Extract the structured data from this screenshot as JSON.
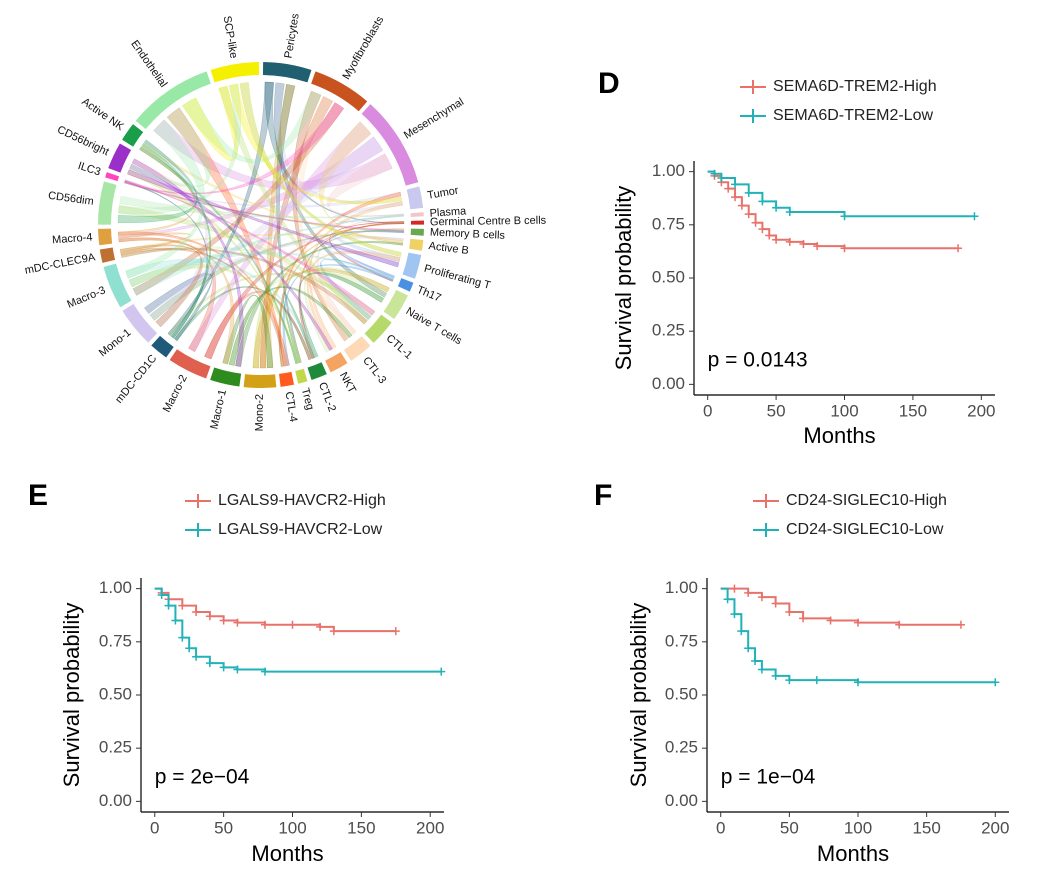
{
  "chart_data": [
    {
      "type": "chord",
      "categories": [
        "Pericytes",
        "Myofibroblasts",
        "Mesenchymal",
        "Tumor",
        "Plasma",
        "Germinal Centre B cells",
        "Memory B cells",
        "Active B",
        "Proliferating T",
        "Th17",
        "Naive T cells",
        "CTL-1",
        "CTL-3",
        "NKT",
        "CTL-2",
        "Treg",
        "CTL-4",
        "Mono-2",
        "Macro-1",
        "Macro-2",
        "mDC-CD1C",
        "Mono-1",
        "Macro-3",
        "mDC-CLEC9A",
        "Macro-4",
        "CD56dim",
        "ILC3",
        "CD56bright",
        "Active NK",
        "Endothelial",
        "SCP-like"
      ],
      "values": [
        18,
        22,
        34,
        8,
        1.5,
        1.5,
        2.5,
        4,
        9,
        3.5,
        10,
        10,
        9,
        7,
        6,
        3.5,
        5,
        12,
        11,
        15,
        7,
        15,
        16,
        5,
        6,
        16,
        2,
        10,
        7,
        32,
        18
      ],
      "colors": [
        "#1f5f6f",
        "#c8531e",
        "#d98be0",
        "#c9c9f0",
        "#f2c6c6",
        "#d62728",
        "#6aa84f",
        "#f0d264",
        "#9fc5f0",
        "#4a90e2",
        "#c9e59a",
        "#b6d96b",
        "#fdd9b5",
        "#f4a460",
        "#1f8a3a",
        "#c0d84a",
        "#ff5a1f",
        "#d4a017",
        "#2e8b1e",
        "#e06050",
        "#1f5a7a",
        "#d2c6f0",
        "#8fe0d0",
        "#c07030",
        "#e0a040",
        "#a8e6a8",
        "#ff44c0",
        "#9b30c9",
        "#1a9e4a",
        "#98e8a8",
        "#f5f000"
      ]
    },
    {
      "type": "km",
      "panel": "D",
      "annotation": "p = 0.0143",
      "xlabel": "Months",
      "ylabel": "Survival probability",
      "xlim": [
        -10,
        210
      ],
      "xticks": [
        0,
        50,
        100,
        150,
        200
      ],
      "ylim": [
        -0.05,
        1.05
      ],
      "yticks": [
        {
          "value": 0,
          "label": "0.00"
        },
        {
          "value": 0.25,
          "label": "0.25"
        },
        {
          "value": 0.5,
          "label": "0.50"
        },
        {
          "value": 0.75,
          "label": "0.75"
        },
        {
          "value": 1,
          "label": "1.00"
        }
      ],
      "series": [
        {
          "name": "SEMA6D-TREM2-High",
          "color": "#e8726a",
          "x": [
            0,
            5,
            10,
            15,
            20,
            25,
            30,
            35,
            40,
            45,
            50,
            60,
            70,
            80,
            100,
            183
          ],
          "values": [
            1,
            0.98,
            0.95,
            0.92,
            0.88,
            0.84,
            0.8,
            0.76,
            0.73,
            0.7,
            0.68,
            0.67,
            0.66,
            0.65,
            0.64,
            0.64
          ]
        },
        {
          "name": "SEMA6D-TREM2-Low",
          "color": "#20b2b8",
          "x": [
            0,
            5,
            10,
            20,
            30,
            40,
            50,
            60,
            100,
            195
          ],
          "values": [
            1,
            0.99,
            0.97,
            0.94,
            0.9,
            0.86,
            0.83,
            0.81,
            0.79,
            0.79
          ]
        }
      ]
    },
    {
      "type": "km",
      "panel": "E",
      "annotation": "p = 2e−04",
      "xlabel": "Months",
      "ylabel": "Survival probability",
      "xlim": [
        -10,
        210
      ],
      "xticks": [
        0,
        50,
        100,
        150,
        200
      ],
      "ylim": [
        -0.05,
        1.05
      ],
      "yticks": [
        {
          "value": 0,
          "label": "0.00"
        },
        {
          "value": 0.25,
          "label": "0.25"
        },
        {
          "value": 0.5,
          "label": "0.50"
        },
        {
          "value": 0.75,
          "label": "0.75"
        },
        {
          "value": 1,
          "label": "1.00"
        }
      ],
      "series": [
        {
          "name": "LGALS9-HAVCR2-High",
          "color": "#e8726a",
          "x": [
            0,
            5,
            10,
            20,
            30,
            40,
            50,
            60,
            80,
            100,
            120,
            130,
            175
          ],
          "values": [
            1,
            0.98,
            0.95,
            0.92,
            0.89,
            0.87,
            0.85,
            0.84,
            0.83,
            0.83,
            0.82,
            0.8,
            0.8
          ]
        },
        {
          "name": "LGALS9-HAVCR2-Low",
          "color": "#20b2b8",
          "x": [
            0,
            5,
            10,
            15,
            20,
            25,
            30,
            40,
            50,
            60,
            80,
            208
          ],
          "values": [
            1,
            0.97,
            0.92,
            0.85,
            0.77,
            0.72,
            0.68,
            0.65,
            0.63,
            0.62,
            0.61,
            0.61
          ]
        }
      ]
    },
    {
      "type": "km",
      "panel": "F",
      "annotation": "p = 1e−04",
      "xlabel": "Months",
      "ylabel": "Survival probability",
      "xlim": [
        -10,
        210
      ],
      "xticks": [
        0,
        50,
        100,
        150,
        200
      ],
      "ylim": [
        -0.05,
        1.05
      ],
      "yticks": [
        {
          "value": 0,
          "label": "0.00"
        },
        {
          "value": 0.25,
          "label": "0.25"
        },
        {
          "value": 0.5,
          "label": "0.50"
        },
        {
          "value": 0.75,
          "label": "0.75"
        },
        {
          "value": 1,
          "label": "1.00"
        }
      ],
      "series": [
        {
          "name": "CD24-SIGLEC10-High",
          "color": "#e8726a",
          "x": [
            0,
            10,
            20,
            30,
            40,
            50,
            60,
            80,
            100,
            130,
            175
          ],
          "values": [
            1,
            1,
            0.98,
            0.96,
            0.93,
            0.89,
            0.86,
            0.85,
            0.84,
            0.83,
            0.83
          ]
        },
        {
          "name": "CD24-SIGLEC10-Low",
          "color": "#20b2b8",
          "x": [
            0,
            5,
            10,
            15,
            20,
            25,
            30,
            40,
            50,
            70,
            100,
            200
          ],
          "values": [
            1,
            0.95,
            0.88,
            0.8,
            0.72,
            0.66,
            0.62,
            0.59,
            0.57,
            0.57,
            0.56,
            0.56
          ]
        }
      ]
    }
  ]
}
